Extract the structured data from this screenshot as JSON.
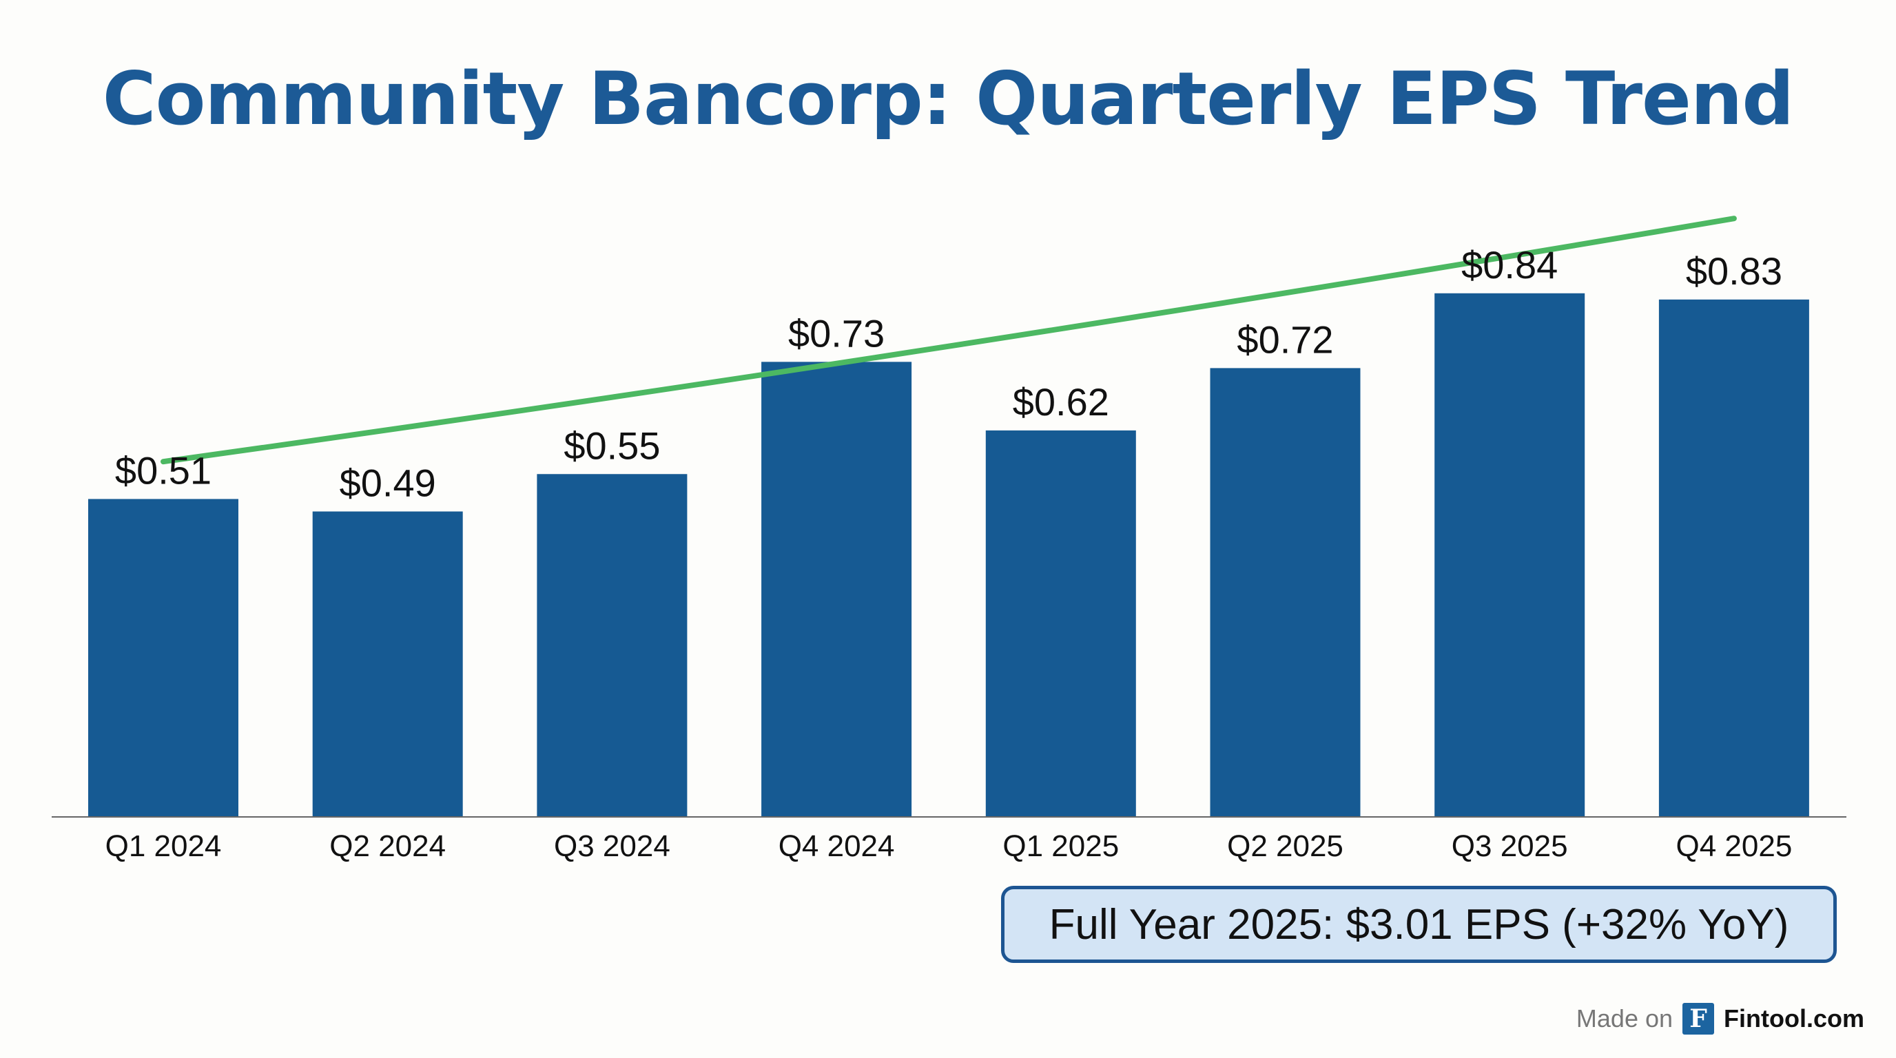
{
  "chart_data": {
    "type": "bar",
    "title": "Community Bancorp: Quarterly EPS Trend",
    "xlabel": "",
    "ylabel": "",
    "categories": [
      "Q1 2024",
      "Q2 2024",
      "Q3 2024",
      "Q4 2024",
      "Q1 2025",
      "Q2 2025",
      "Q3 2025",
      "Q4 2025"
    ],
    "values": [
      0.51,
      0.49,
      0.55,
      0.73,
      0.62,
      0.72,
      0.84,
      0.83
    ],
    "labels": [
      "$0.51",
      "$0.49",
      "$0.55",
      "$0.73",
      "$0.62",
      "$0.72",
      "$0.84",
      "$0.83"
    ],
    "ylim": [
      0,
      1.0
    ],
    "grid": false,
    "trendline": {
      "start": 0.57,
      "end": 0.96
    },
    "colors": {
      "bar": "#165a93",
      "trend": "#4cb862",
      "title": "#1c5a96"
    }
  },
  "callout": "Full Year 2025: $3.01 EPS (+32% YoY)",
  "footer": {
    "made_on": "Made on",
    "logo_letter": "F",
    "brand": "Fintool.com"
  }
}
